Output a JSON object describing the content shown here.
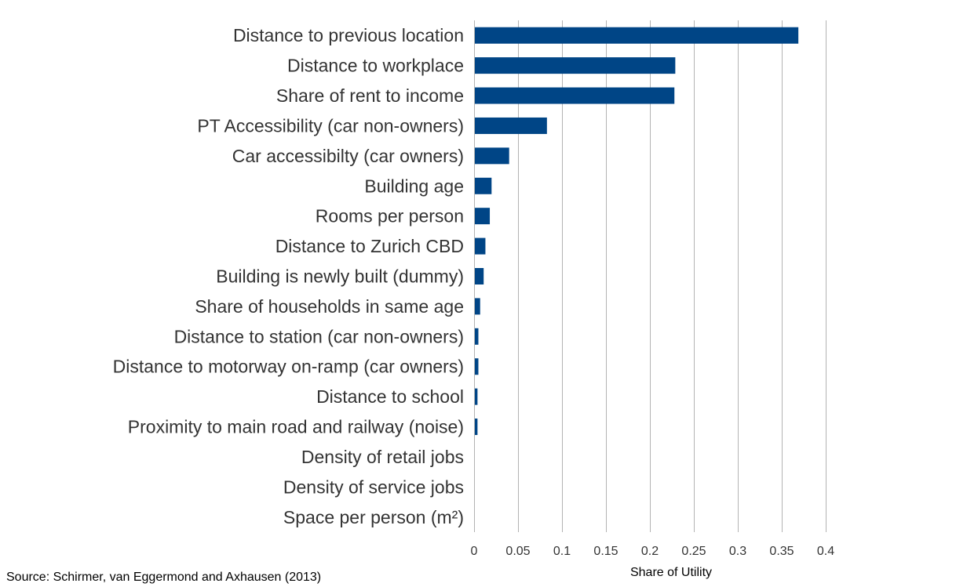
{
  "chart_data": {
    "type": "bar",
    "orientation": "horizontal",
    "categories": [
      "Distance to previous location",
      "Distance to workplace",
      "Share of rent to income",
      "PT Accessibility (car non-owners)",
      "Car accessibilty (car owners)",
      "Building age",
      "Rooms per person",
      "Distance to Zurich CBD",
      "Building is newly built (dummy)",
      "Share of households in same age",
      "Distance to station (car non-owners)",
      "Distance to motorway on-ramp (car owners)",
      "Distance to school",
      "Proximity to main road and railway (noise)",
      "Density of retail jobs",
      "Density of service jobs",
      "Space per person (m²)"
    ],
    "values": [
      0.368,
      0.228,
      0.227,
      0.082,
      0.039,
      0.019,
      0.017,
      0.012,
      0.01,
      0.006,
      0.004,
      0.004,
      0.003,
      0.003,
      0.0,
      0.0,
      0.0
    ],
    "xlabel": "Share of Utility",
    "ylabel": "",
    "xlim": [
      0,
      0.4
    ],
    "xticks": [
      "0",
      "0.05",
      "0.1",
      "0.15",
      "0.2",
      "0.25",
      "0.3",
      "0.35",
      "0.4"
    ],
    "grid": "vertical",
    "bar_color": "#004586",
    "grid_color": "#b3b3b3",
    "source": "Source: Schirmer, van Eggermond and Axhausen (2013)"
  }
}
